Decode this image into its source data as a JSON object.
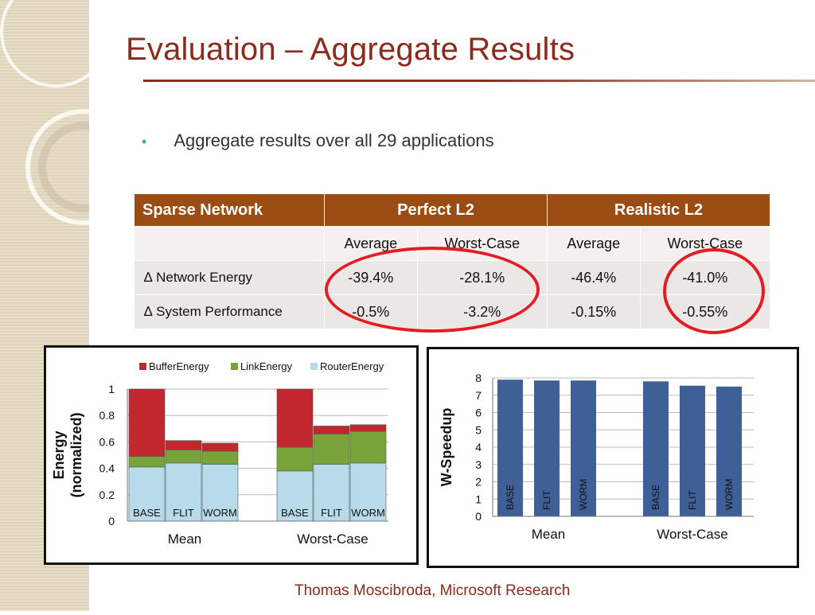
{
  "slide": {
    "title": "Evaluation – Aggregate Results",
    "bullet": "Aggregate results over all 29 applications",
    "footer": "Thomas Moscibroda, Microsoft Research"
  },
  "table": {
    "header": [
      "Sparse Network",
      "Perfect L2",
      "Realistic L2"
    ],
    "subheader": [
      "Average",
      "Worst-Case",
      "Average",
      "Worst-Case"
    ],
    "rows": [
      {
        "label": "∆ Network Energy",
        "values": [
          "-39.4%",
          "-28.1%",
          "-46.4%",
          "-41.0%"
        ]
      },
      {
        "label": "∆ System Performance",
        "values": [
          "-0.5%",
          "-3.2%",
          "-0.15%",
          "-0.55%"
        ]
      }
    ]
  },
  "chart_data": [
    {
      "type": "bar",
      "stacked": true,
      "ylabel_line1": "Energy",
      "ylabel_line2": "(normalized)",
      "ylim": [
        0,
        1
      ],
      "yticks": [
        "0",
        "0.2",
        "0.4",
        "0.6",
        "0.8",
        "1"
      ],
      "groups": [
        "Mean",
        "Worst-Case"
      ],
      "bar_labels": [
        "BASE",
        "FLIT",
        "WORM",
        "BASE",
        "FLIT",
        "WORM"
      ],
      "legend": [
        "BufferEnergy",
        "LinkEnergy",
        "RouterEnergy"
      ],
      "series": [
        {
          "name": "RouterEnergy",
          "color": "#b7dbe8",
          "values": [
            0.41,
            0.44,
            0.43,
            0.38,
            0.43,
            0.44
          ]
        },
        {
          "name": "LinkEnergy",
          "color": "#77a33a",
          "values": [
            0.08,
            0.1,
            0.1,
            0.18,
            0.23,
            0.24
          ]
        },
        {
          "name": "BufferEnergy",
          "color": "#c0282e",
          "values": [
            0.51,
            0.07,
            0.06,
            0.44,
            0.06,
            0.05
          ]
        }
      ],
      "grid": true
    },
    {
      "type": "bar",
      "ylabel": "W-Speedup",
      "ylim": [
        0,
        8
      ],
      "yticks": [
        "0",
        "1",
        "2",
        "3",
        "4",
        "5",
        "6",
        "7",
        "8"
      ],
      "groups": [
        "Mean",
        "Worst-Case"
      ],
      "bar_labels": [
        "BASE",
        "FLIT",
        "WORM",
        "BASE",
        "FLIT",
        "WORM"
      ],
      "values": [
        7.9,
        7.85,
        7.85,
        7.8,
        7.55,
        7.5
      ],
      "color": "#3f5f97",
      "grid": true
    }
  ]
}
